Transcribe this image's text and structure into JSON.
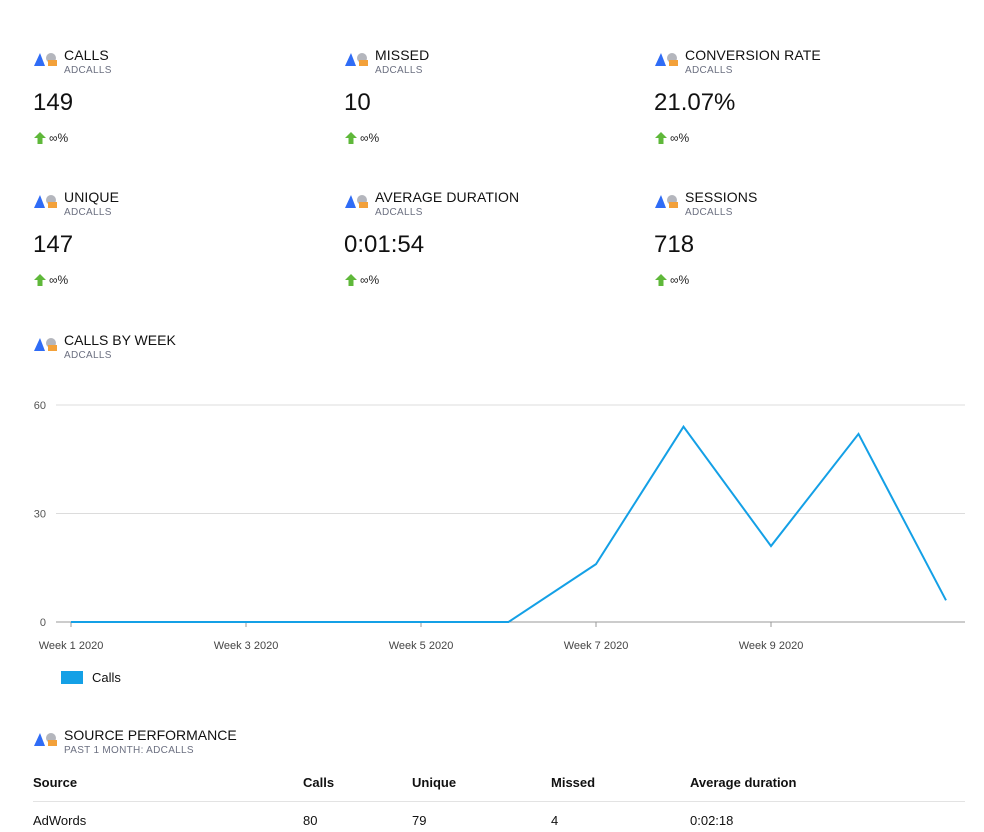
{
  "brand": {
    "blue": "#2f6cf6",
    "gray": "#b4b6bd",
    "orange": "#f3a13a"
  },
  "kpis": [
    {
      "title": "CALLS",
      "source": "ADCALLS",
      "value": "149",
      "delta": "∞%"
    },
    {
      "title": "MISSED",
      "source": "ADCALLS",
      "value": "10",
      "delta": "∞%"
    },
    {
      "title": "CONVERSION RATE",
      "source": "ADCALLS",
      "value": "21.07%",
      "delta": "∞%"
    },
    {
      "title": "UNIQUE",
      "source": "ADCALLS",
      "value": "147",
      "delta": "∞%"
    },
    {
      "title": "AVERAGE DURATION",
      "source": "ADCALLS",
      "value": "0:01:54",
      "delta": "∞%"
    },
    {
      "title": "SESSIONS",
      "source": "ADCALLS",
      "value": "718",
      "delta": "∞%"
    }
  ],
  "delta_icon": "arrow-up-icon",
  "delta_color": "#5fb83a",
  "calls_chart": {
    "title": "CALLS BY WEEK",
    "source": "ADCALLS"
  },
  "chart_data": {
    "type": "line",
    "title": "CALLS BY WEEK",
    "x": [
      "Week 1 2020",
      "Week 2 2020",
      "Week 3 2020",
      "Week 4 2020",
      "Week 5 2020",
      "Week 6 2020",
      "Week 7 2020",
      "Week 8 2020",
      "Week 9 2020",
      "Week 10 2020",
      "Week 11 2020"
    ],
    "tick_labels": [
      "Week 1 2020",
      "Week 3 2020",
      "Week 5 2020",
      "Week 7 2020",
      "Week 9 2020"
    ],
    "series": [
      {
        "name": "Calls",
        "values": [
          0,
          0,
          0,
          0,
          0,
          0,
          16,
          54,
          21,
          52,
          6
        ],
        "color": "#14a0e6"
      }
    ],
    "ylim": [
      0,
      60
    ],
    "yticks": [
      0,
      30,
      60
    ],
    "grid": true,
    "legend": "bottom-left"
  },
  "source_performance": {
    "title": "SOURCE PERFORMANCE",
    "subtitle": "PAST 1 MONTH:   ADCALLS",
    "columns": [
      "Source",
      "Calls",
      "Unique",
      "Missed",
      "Average duration"
    ],
    "rows": [
      [
        "AdWords",
        "80",
        "79",
        "4",
        "0:02:18"
      ]
    ]
  }
}
